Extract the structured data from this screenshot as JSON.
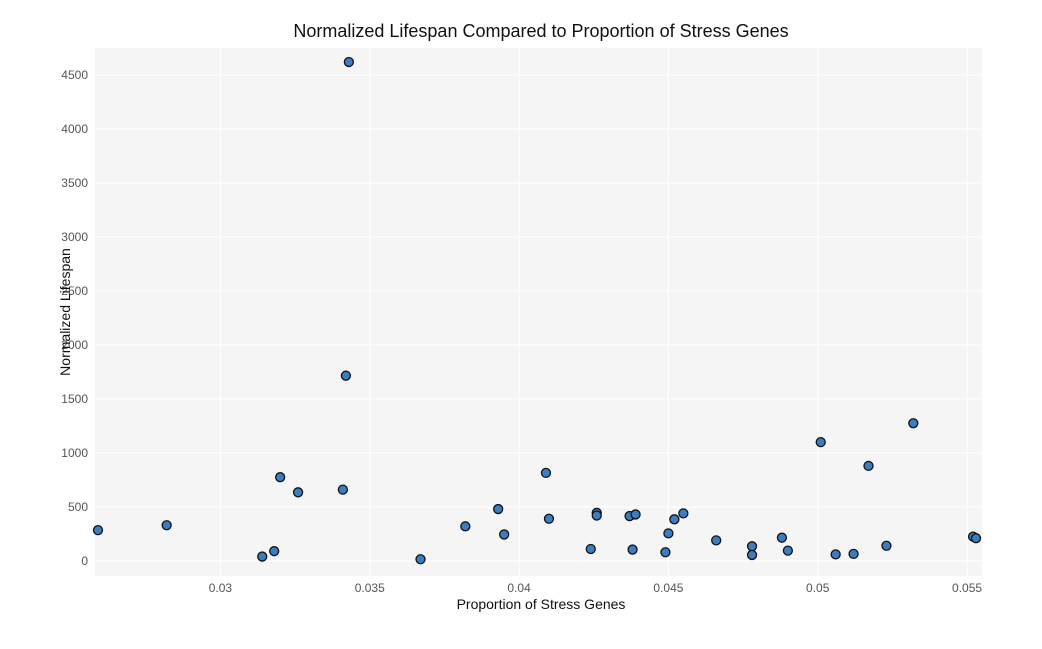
{
  "chart_data": {
    "type": "scatter",
    "title": "Normalized Lifespan Compared to Proportion of Stress Genes",
    "xlabel": "Proportion of Stress Genes",
    "ylabel": "Normalized Lifespan",
    "xlim": [
      0.0258,
      0.0555
    ],
    "ylim": [
      -140,
      4750
    ],
    "xticks": [
      0.03,
      0.035,
      0.04,
      0.045,
      0.05,
      0.055
    ],
    "xtick_labels": [
      "0.03",
      "0.035",
      "0.04",
      "0.045",
      "0.05",
      "0.055"
    ],
    "yticks": [
      0,
      500,
      1000,
      1500,
      2000,
      2500,
      3000,
      3500,
      4000,
      4500
    ],
    "ytick_labels": [
      "0",
      "500",
      "1000",
      "1500",
      "2000",
      "2500",
      "3000",
      "3500",
      "4000",
      "4500"
    ],
    "grid": true,
    "legend": "none",
    "colors": {
      "marker_fill": "#3b7dc0",
      "marker_edge": "#111111",
      "plot_bg": "#f5f5f5",
      "grid": "#ffffff"
    },
    "points": [
      {
        "x": 0.0259,
        "y": 285
      },
      {
        "x": 0.0282,
        "y": 330
      },
      {
        "x": 0.0314,
        "y": 40
      },
      {
        "x": 0.0318,
        "y": 90
      },
      {
        "x": 0.032,
        "y": 775
      },
      {
        "x": 0.0326,
        "y": 635
      },
      {
        "x": 0.0341,
        "y": 660
      },
      {
        "x": 0.0342,
        "y": 1715
      },
      {
        "x": 0.0343,
        "y": 4620
      },
      {
        "x": 0.0367,
        "y": 15
      },
      {
        "x": 0.0382,
        "y": 320
      },
      {
        "x": 0.0393,
        "y": 480
      },
      {
        "x": 0.0395,
        "y": 245
      },
      {
        "x": 0.0409,
        "y": 815
      },
      {
        "x": 0.041,
        "y": 390
      },
      {
        "x": 0.0424,
        "y": 110
      },
      {
        "x": 0.0426,
        "y": 445
      },
      {
        "x": 0.0426,
        "y": 420
      },
      {
        "x": 0.0437,
        "y": 415
      },
      {
        "x": 0.0438,
        "y": 105
      },
      {
        "x": 0.0439,
        "y": 430
      },
      {
        "x": 0.0449,
        "y": 80
      },
      {
        "x": 0.045,
        "y": 255
      },
      {
        "x": 0.0452,
        "y": 385
      },
      {
        "x": 0.0455,
        "y": 440
      },
      {
        "x": 0.0466,
        "y": 190
      },
      {
        "x": 0.0478,
        "y": 135
      },
      {
        "x": 0.0478,
        "y": 55
      },
      {
        "x": 0.0488,
        "y": 215
      },
      {
        "x": 0.049,
        "y": 95
      },
      {
        "x": 0.0501,
        "y": 1100
      },
      {
        "x": 0.0506,
        "y": 60
      },
      {
        "x": 0.0512,
        "y": 65
      },
      {
        "x": 0.0517,
        "y": 880
      },
      {
        "x": 0.0523,
        "y": 140
      },
      {
        "x": 0.0532,
        "y": 1275
      },
      {
        "x": 0.0552,
        "y": 225
      },
      {
        "x": 0.0553,
        "y": 210
      }
    ]
  }
}
